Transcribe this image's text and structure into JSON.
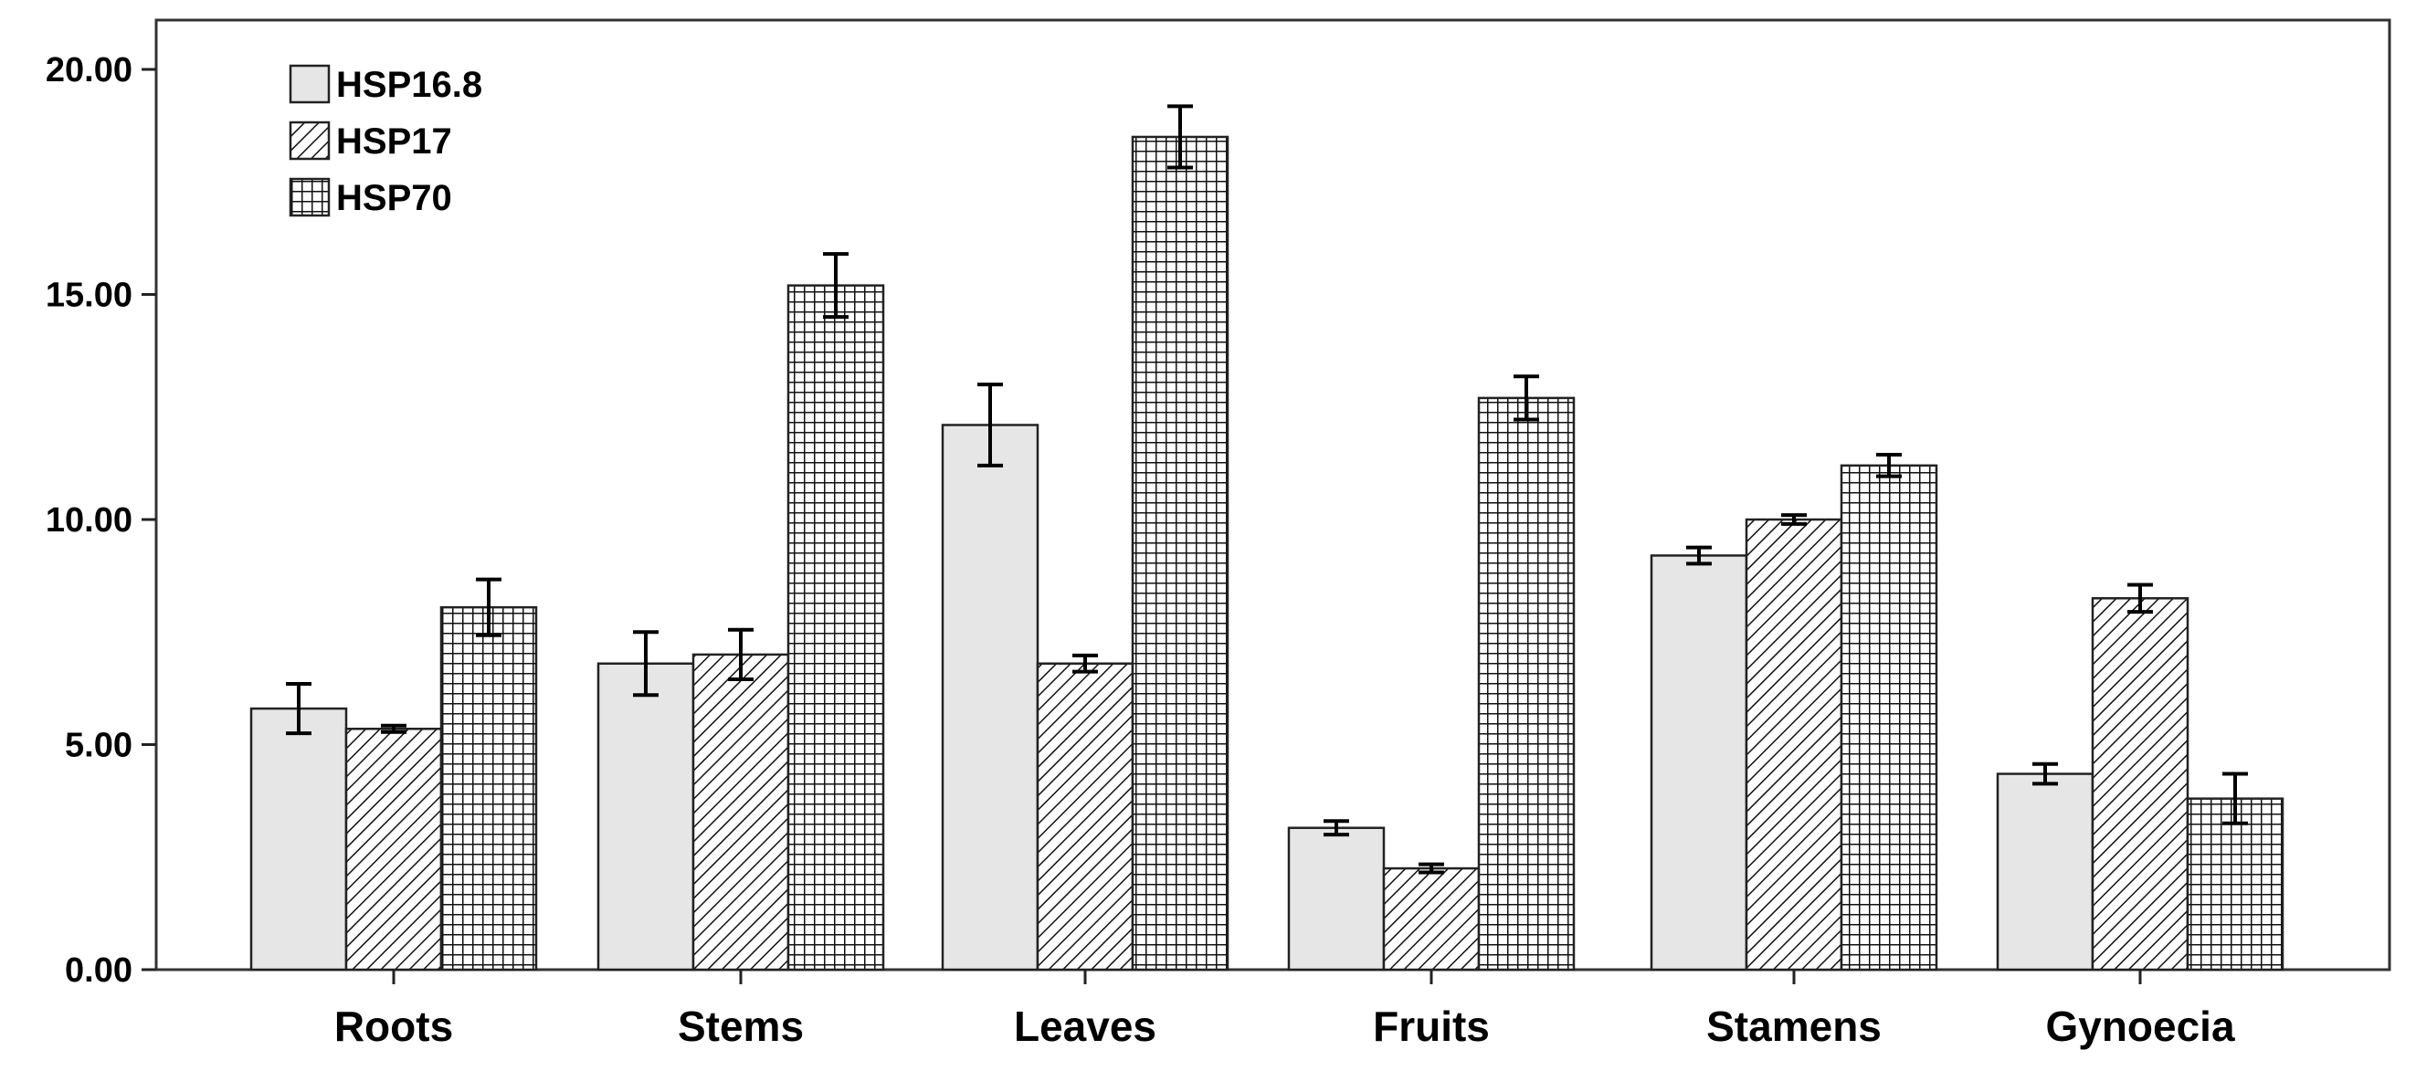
{
  "chart_data": {
    "type": "bar",
    "title": "",
    "xlabel": "",
    "ylabel": "",
    "ylim": [
      0,
      20
    ],
    "yticks": [
      "0.00",
      "5.00",
      "10.00",
      "15.00",
      "20.00"
    ],
    "ytick_values": [
      0,
      5,
      10,
      15,
      20
    ],
    "categories": [
      "Roots",
      "Stems",
      "Leaves",
      "Fruits",
      "Stamens",
      "Gynoecia"
    ],
    "legend_position": "top-left",
    "error_bars": true,
    "series": [
      {
        "name": "HSP16.8",
        "pattern": "solid-light-gray",
        "values": [
          5.8,
          6.8,
          12.1,
          3.15,
          9.2,
          4.35
        ],
        "errors": [
          0.55,
          0.7,
          0.9,
          0.15,
          0.18,
          0.22
        ]
      },
      {
        "name": "HSP17",
        "pattern": "diagonal-hatch",
        "values": [
          5.35,
          7.0,
          6.8,
          2.25,
          10.0,
          8.25
        ],
        "errors": [
          0.07,
          0.55,
          0.18,
          0.09,
          0.1,
          0.3
        ]
      },
      {
        "name": "HSP70",
        "pattern": "grid-hatch",
        "values": [
          8.05,
          15.2,
          18.5,
          12.7,
          11.2,
          3.8
        ],
        "errors": [
          0.62,
          0.7,
          0.68,
          0.48,
          0.24,
          0.55
        ]
      }
    ]
  }
}
